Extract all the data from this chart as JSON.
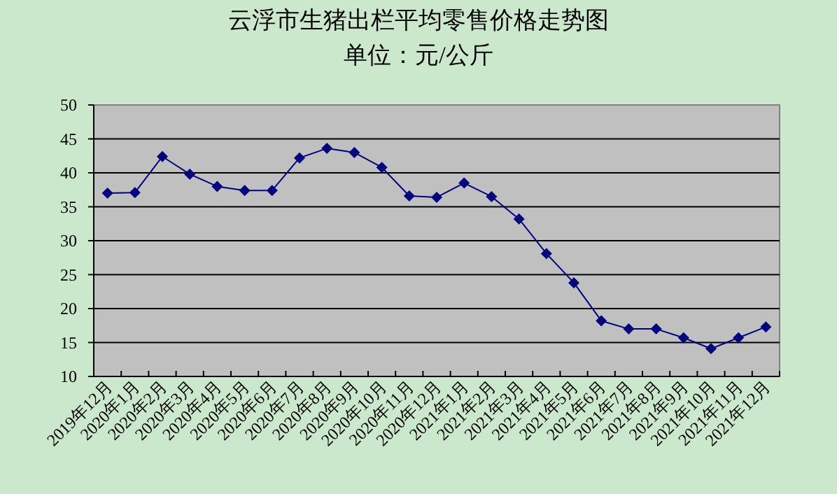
{
  "chart_data": {
    "type": "line",
    "title": "云浮市生猪出栏平均零售价格走势图",
    "subtitle": "单位：元/公斤",
    "categories": [
      "2019年12月",
      "2020年1月",
      "2020年2月",
      "2020年3月",
      "2020年4月",
      "2020年5月",
      "2020年6月",
      "2020年7月",
      "2020年8月",
      "2020年9月",
      "2020年10月",
      "2020年11月",
      "2020年12月",
      "2021年1月",
      "2021年2月",
      "2021年3月",
      "2021年4月",
      "2021年5月",
      "2021年6月",
      "2021年7月",
      "2021年8月",
      "2021年9月",
      "2021年10月",
      "2021年11月",
      "2021年12月"
    ],
    "series": [
      {
        "color": "#000080",
        "values": [
          37.0,
          37.1,
          42.4,
          39.8,
          38.0,
          37.4,
          37.4,
          42.2,
          43.6,
          43.0,
          40.8,
          36.6,
          36.4,
          38.5,
          36.5,
          33.2,
          28.1,
          23.8,
          18.2,
          17.0,
          17.0,
          15.7,
          14.1,
          15.7,
          17.3
        ]
      }
    ],
    "ylim": [
      10,
      50
    ],
    "yticks": [
      10,
      15,
      20,
      25,
      30,
      35,
      40,
      45,
      50
    ],
    "grid": "y",
    "marker": "diamond",
    "line_style": "solid"
  }
}
